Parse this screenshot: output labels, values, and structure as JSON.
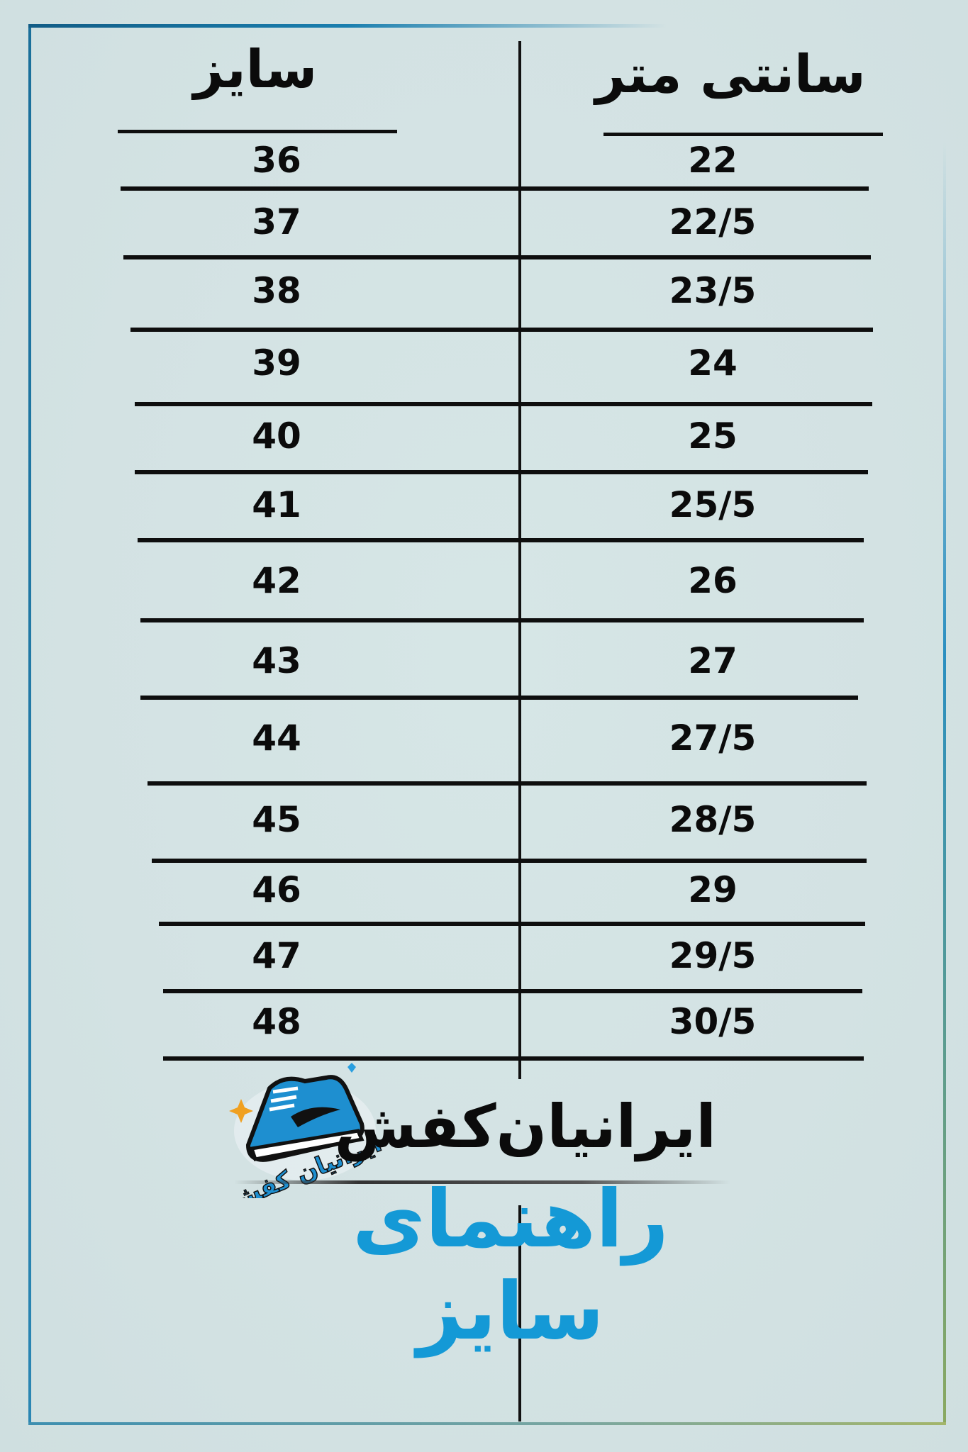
{
  "headers": {
    "size": "سایز",
    "cm": "سانتی متر"
  },
  "rows": [
    {
      "size": "36",
      "cm": "22"
    },
    {
      "size": "37",
      "cm": "22/5"
    },
    {
      "size": "38",
      "cm": "23/5"
    },
    {
      "size": "39",
      "cm": "24"
    },
    {
      "size": "40",
      "cm": "25"
    },
    {
      "size": "41",
      "cm": "25/5"
    },
    {
      "size": "42",
      "cm": "26"
    },
    {
      "size": "43",
      "cm": "27"
    },
    {
      "size": "44",
      "cm": "27/5"
    },
    {
      "size": "45",
      "cm": "28/5"
    },
    {
      "size": "46",
      "cm": "29"
    },
    {
      "size": "47",
      "cm": "29/5"
    },
    {
      "size": "48",
      "cm": "30/5"
    }
  ],
  "brand": {
    "name": "ایرانیان‌کفش",
    "logo_text": "ایرانیان کفش"
  },
  "title": "راهنمای سایز",
  "colors": {
    "accent": "#1499d6",
    "text": "#0b0b0b",
    "background": "#d4e3e4",
    "frame": "#1a7faf"
  }
}
